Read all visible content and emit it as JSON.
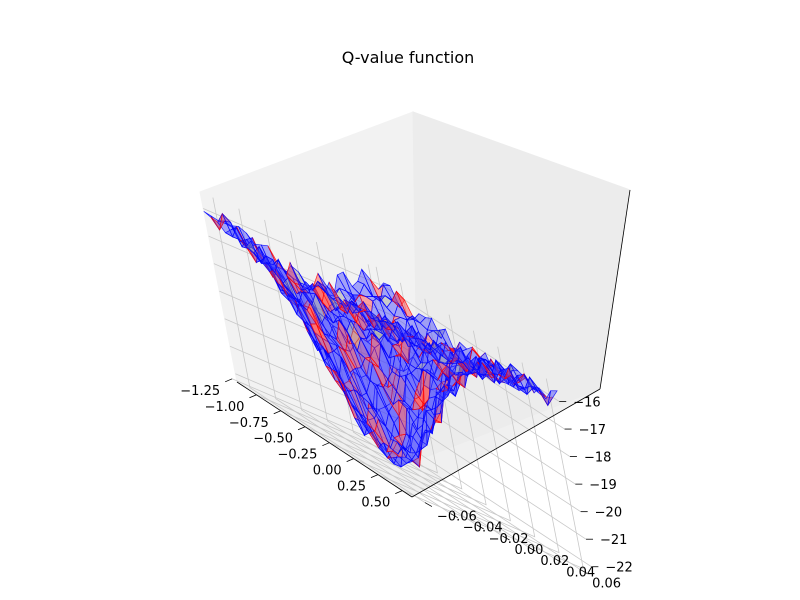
{
  "chart_data": {
    "type": "surface",
    "title": "Q-value function",
    "xlabel": "",
    "ylabel": "",
    "zlabel": "",
    "x_ticks": [
      "−1.25",
      "−1.00",
      "−0.75",
      "−0.50",
      "−0.25",
      "0.00",
      "0.25",
      "0.50"
    ],
    "y_ticks": [
      "−0.06",
      "−0.04",
      "−0.02",
      "0.00",
      "0.02",
      "0.04",
      "0.06"
    ],
    "z_ticks": [
      "−22",
      "−21",
      "−20",
      "−19",
      "−18",
      "−17",
      "−16"
    ],
    "xlim": [
      -1.2,
      0.6
    ],
    "ylim": [
      -0.07,
      0.07
    ],
    "zlim": [
      -22.3,
      -15.4
    ],
    "grid": true,
    "surface": {
      "z_rim": -16.0,
      "z_min": -22.2,
      "basin_center": {
        "x": -0.5,
        "y": 0.0
      }
    },
    "colors": {
      "face_blue": "#4040ff",
      "face_red": "#ff3c3c",
      "face_gray": "#9a9a9a",
      "edge_blue": "#0000ff",
      "edge_red": "#ff0000",
      "pane": "#f0f0f0",
      "grid": "#c8c8c8"
    }
  }
}
